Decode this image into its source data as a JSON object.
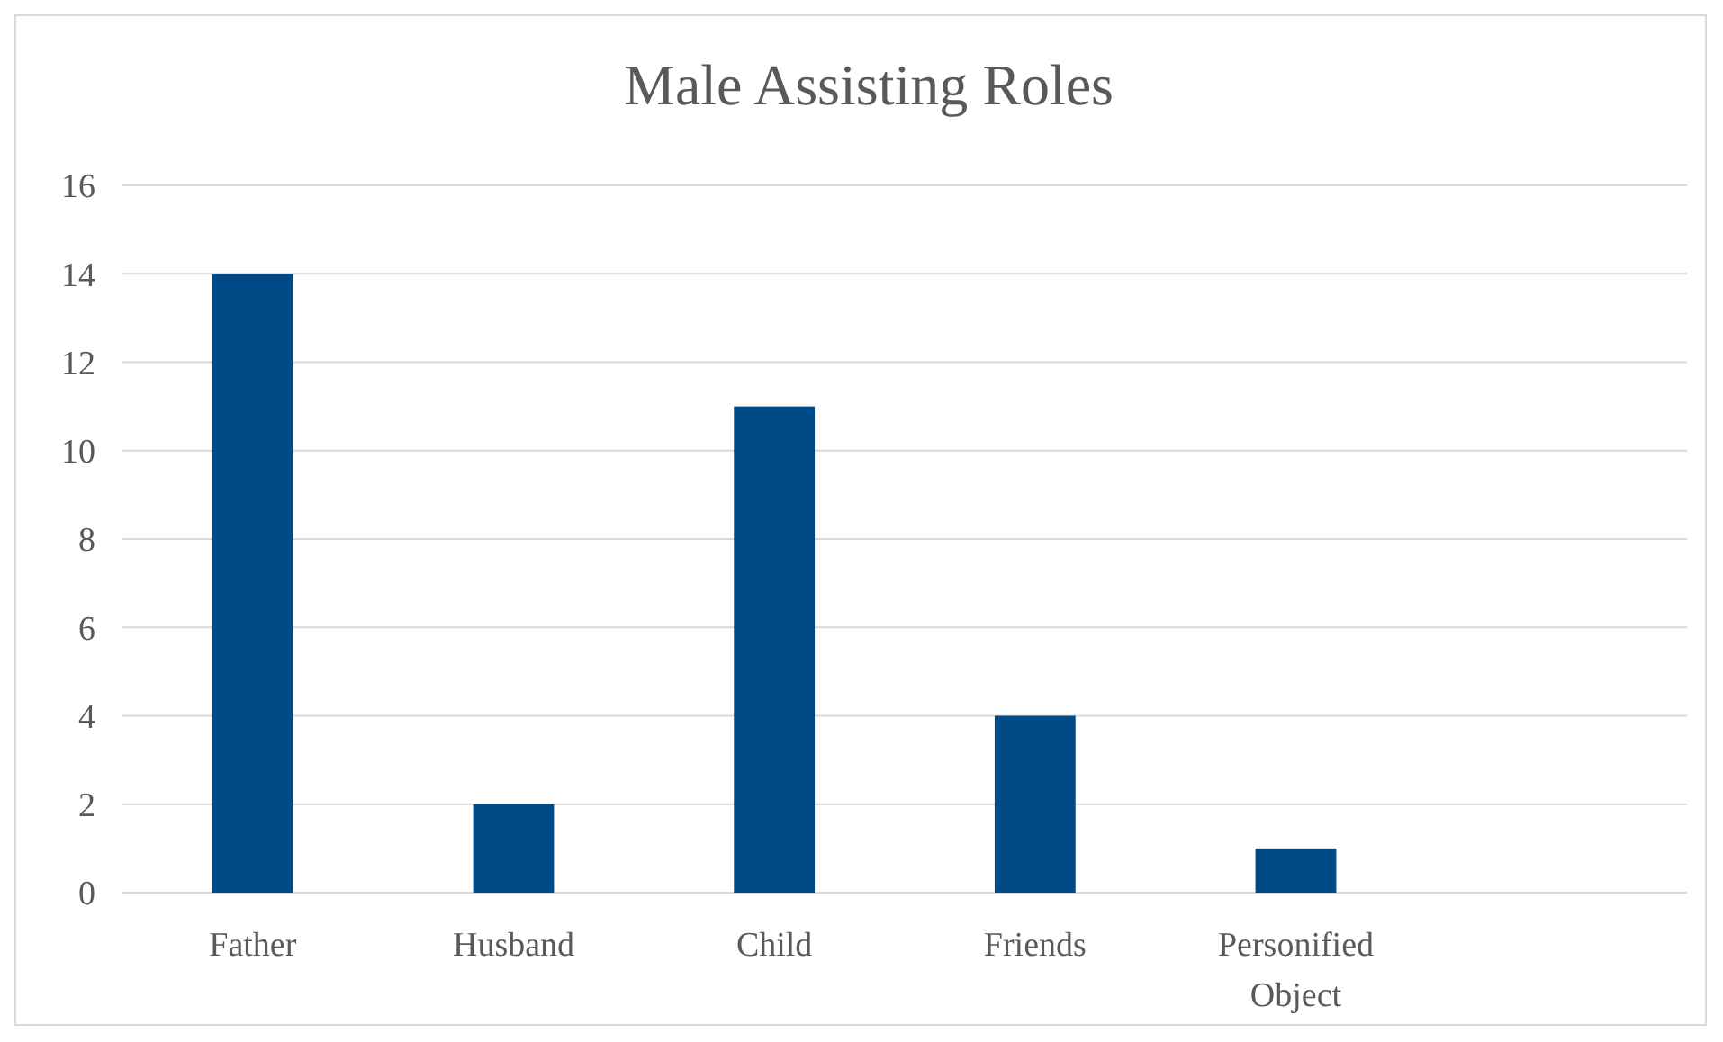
{
  "chart_data": {
    "type": "bar",
    "title": "Male Assisting Roles",
    "categories": [
      "Father",
      "Husband",
      "Child",
      "Friends",
      "Personified Object",
      null
    ],
    "values": [
      14,
      2,
      11,
      4,
      1,
      null
    ],
    "color": "#004a87",
    "ylim": [
      0,
      16
    ],
    "yticks": [
      0,
      2,
      4,
      6,
      8,
      10,
      12,
      14,
      16
    ],
    "grid": "y"
  }
}
